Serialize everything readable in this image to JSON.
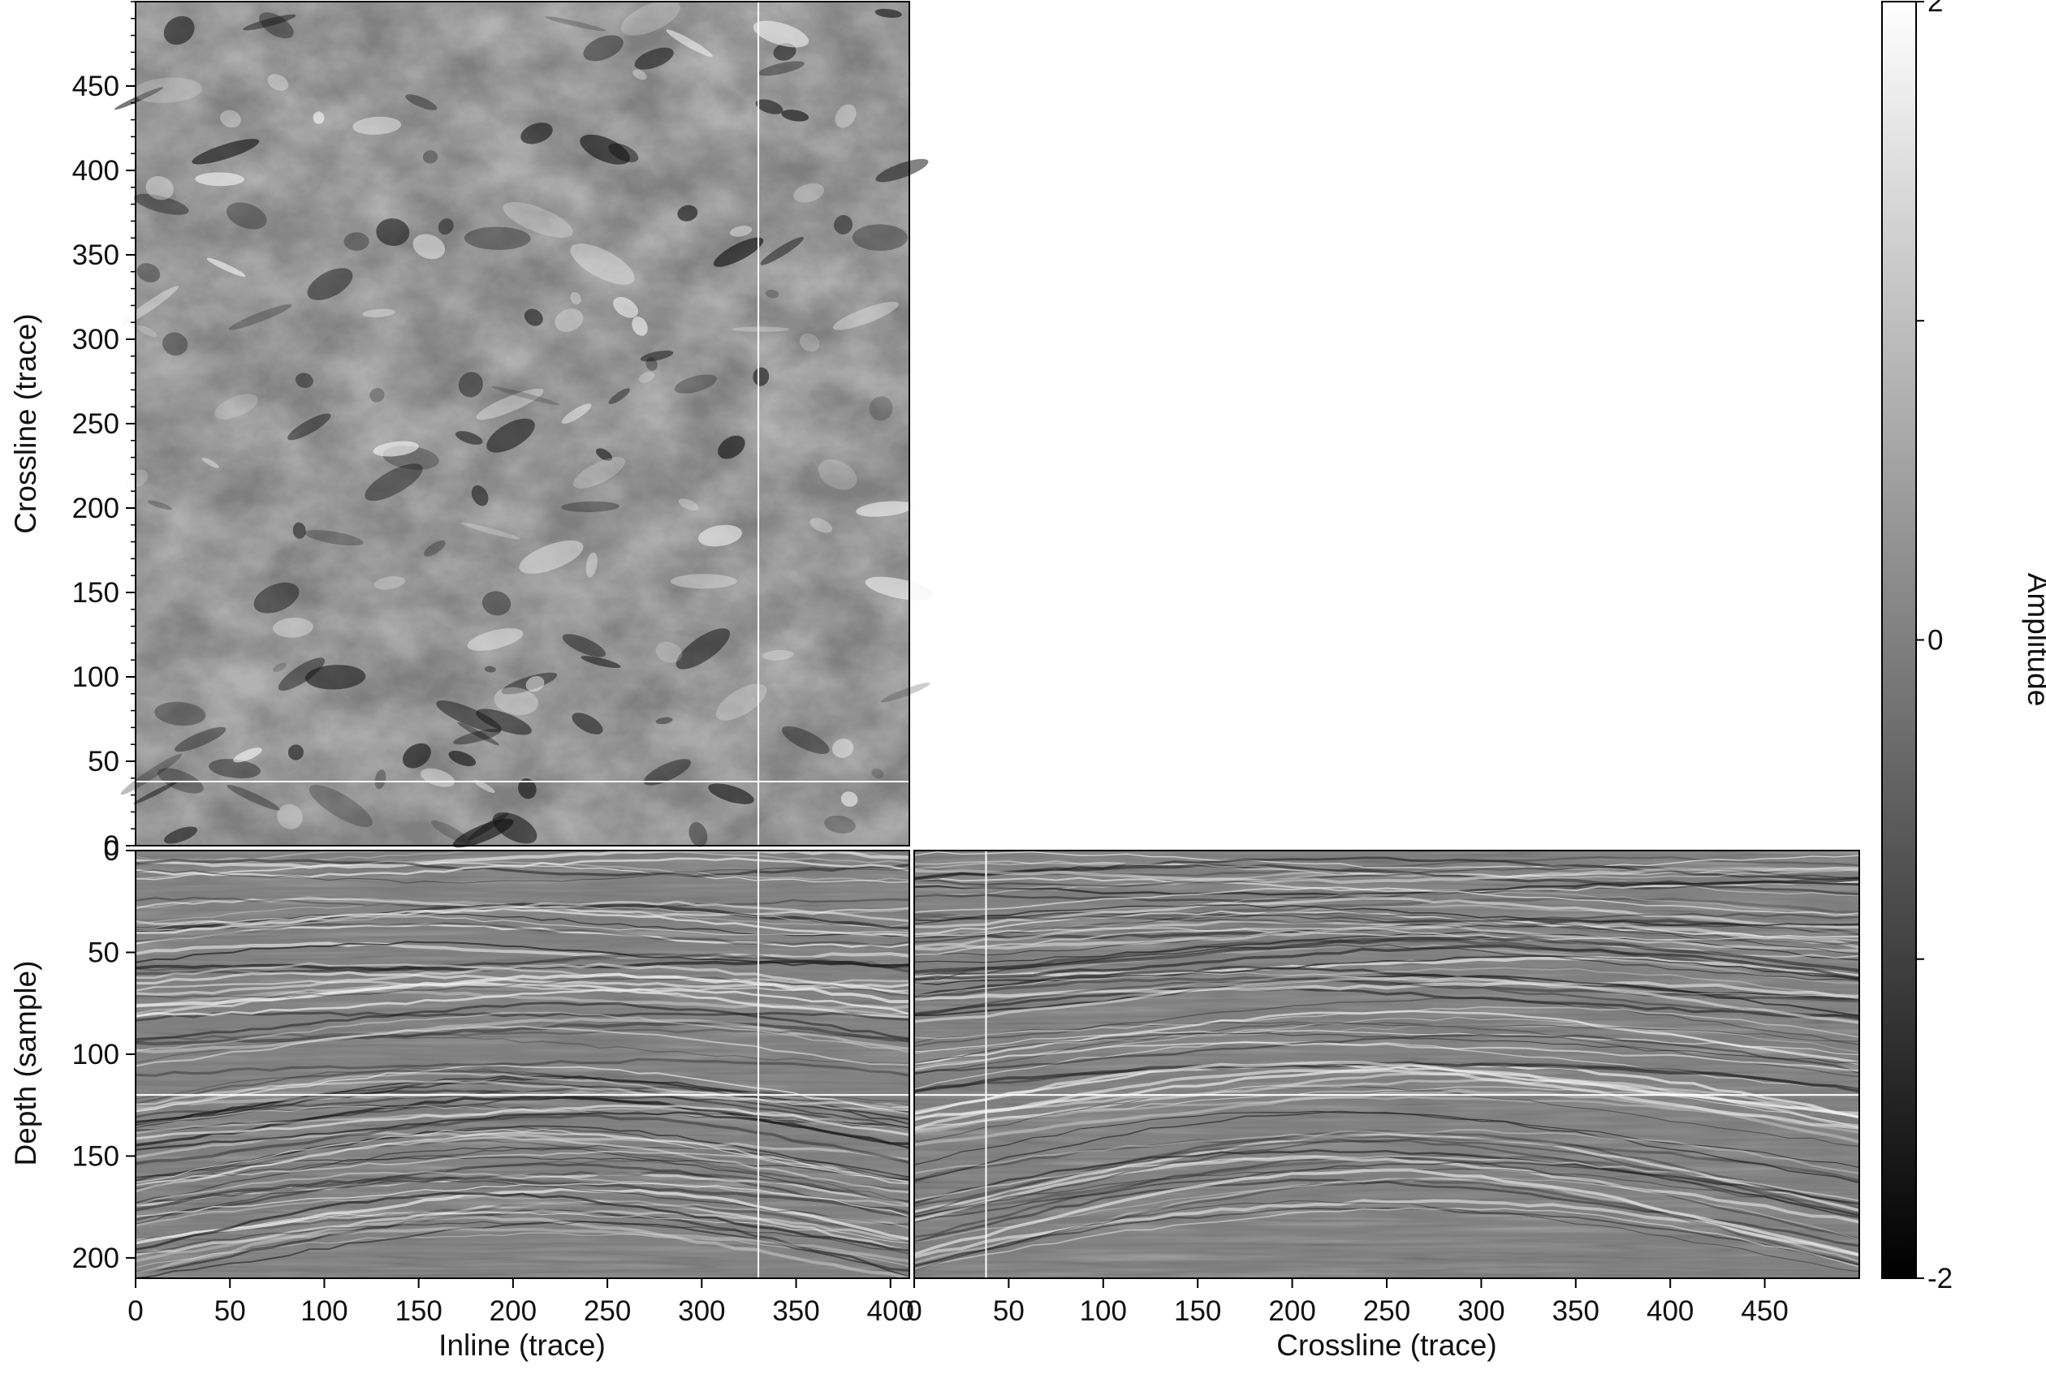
{
  "chart_data": {
    "type": "heatmap",
    "colormap": "gray",
    "panels": [
      {
        "id": "depth-slice",
        "xlabel": "",
        "ylabel": "Crossline (trace)",
        "xlim": [
          0,
          410
        ],
        "ylim": [
          0,
          500
        ],
        "yticks": [
          0,
          50,
          100,
          150,
          200,
          250,
          300,
          350,
          400,
          450
        ],
        "crosshair": {
          "x": 330,
          "y": 38
        }
      },
      {
        "id": "inline-section",
        "xlabel": "Inline (trace)",
        "ylabel": "Depth (sample)",
        "xlim": [
          0,
          410
        ],
        "ylim": [
          210,
          0
        ],
        "xticks": [
          0,
          50,
          100,
          150,
          200,
          250,
          300,
          350,
          400
        ],
        "yticks": [
          0,
          50,
          100,
          150,
          200
        ],
        "crosshair": {
          "x": 330,
          "y": 120
        }
      },
      {
        "id": "crossline-section",
        "xlabel": "Crossline (trace)",
        "ylabel": "",
        "xlim": [
          0,
          500
        ],
        "ylim": [
          210,
          0
        ],
        "xticks": [
          0,
          50,
          100,
          150,
          200,
          250,
          300,
          350,
          400,
          450
        ],
        "crosshair": {
          "x": 38,
          "y": 120
        }
      }
    ],
    "colorbar": {
      "label": "Amplitude",
      "range": [
        -2,
        2
      ],
      "ticks": [
        {
          "value": 2,
          "label": "2"
        },
        {
          "value": 0,
          "label": "0"
        },
        {
          "value": -2,
          "label": "-2"
        }
      ]
    }
  }
}
